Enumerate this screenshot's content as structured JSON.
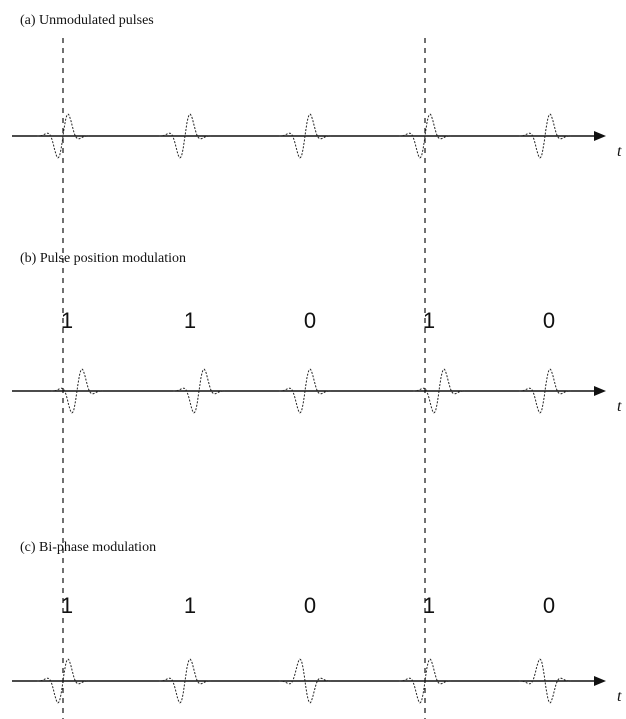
{
  "panels": [
    {
      "title": "(a) Unmodulated pulses",
      "axis_label": "t",
      "bits": [],
      "pulses": [
        {
          "slot": 1,
          "shift": 0,
          "inverted": false
        },
        {
          "slot": 2,
          "shift": 0,
          "inverted": false
        },
        {
          "slot": 3,
          "shift": 0,
          "inverted": false
        },
        {
          "slot": 4,
          "shift": 0,
          "inverted": false
        },
        {
          "slot": 5,
          "shift": 0,
          "inverted": false
        }
      ]
    },
    {
      "title": "(b) Pulse position modulation",
      "axis_label": "t",
      "bits": [
        "1",
        "1",
        "0",
        "1",
        "0"
      ],
      "pulses": [
        {
          "slot": 1,
          "shift": 1,
          "inverted": false
        },
        {
          "slot": 2,
          "shift": 1,
          "inverted": false
        },
        {
          "slot": 3,
          "shift": 0,
          "inverted": false
        },
        {
          "slot": 4,
          "shift": 1,
          "inverted": false
        },
        {
          "slot": 5,
          "shift": 0,
          "inverted": false
        }
      ]
    },
    {
      "title": "(c) Bi-phase modulation",
      "axis_label": "t",
      "bits": [
        "1",
        "1",
        "0",
        "1",
        "0"
      ],
      "pulses": [
        {
          "slot": 1,
          "shift": 0,
          "inverted": false
        },
        {
          "slot": 2,
          "shift": 0,
          "inverted": false
        },
        {
          "slot": 3,
          "shift": 0,
          "inverted": true
        },
        {
          "slot": 4,
          "shift": 0,
          "inverted": false
        },
        {
          "slot": 5,
          "shift": 0,
          "inverted": true
        }
      ]
    }
  ]
}
